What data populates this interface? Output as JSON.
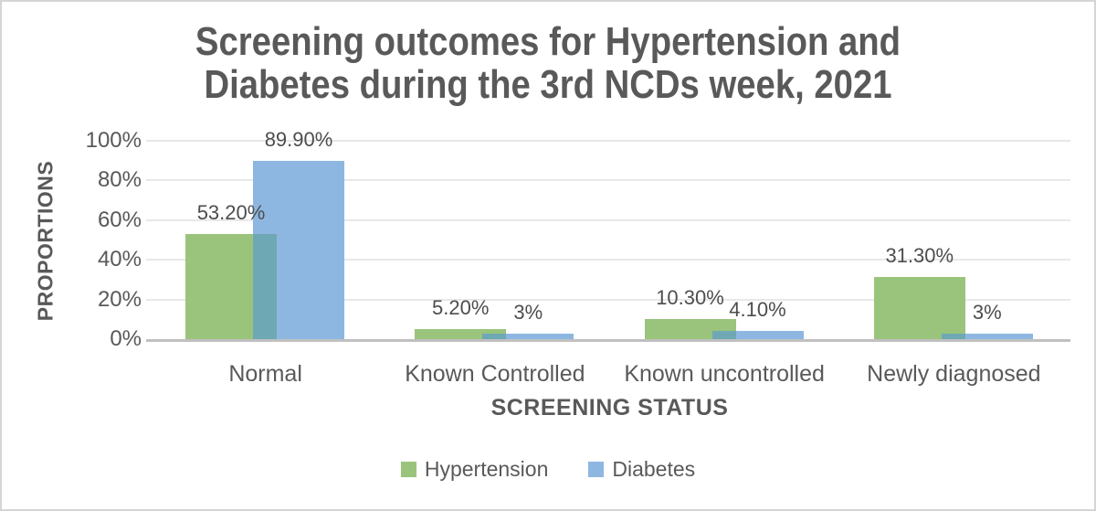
{
  "title": {
    "line1": "Screening outcomes for Hypertension and",
    "line2": "Diabetes during the 3rd NCDs week, 2021"
  },
  "chart_data": {
    "type": "bar",
    "title": "Screening outcomes for Hypertension and Diabetes during the 3rd NCDs week, 2021",
    "xlabel": "SCREENING STATUS",
    "ylabel": "PROPORTIONS",
    "categories": [
      "Normal",
      "Known Controlled",
      "Known uncontrolled",
      "Newly diagnosed"
    ],
    "series": [
      {
        "name": "Hypertension",
        "color": "#9ac47c",
        "values": [
          53.2,
          5.2,
          10.3,
          31.3
        ],
        "labels": [
          "53.20%",
          "5.20%",
          "10.30%",
          "31.30%"
        ]
      },
      {
        "name": "Diabetes",
        "color": "#8db7e0",
        "values": [
          89.9,
          3,
          4.1,
          3
        ],
        "labels": [
          "89.90%",
          "3%",
          "4.10%",
          "3%"
        ]
      }
    ],
    "overlap_color": "#6fa8b5",
    "ylim": [
      0,
      100
    ],
    "ytick_step": 20,
    "yticks": [
      "0%",
      "20%",
      "40%",
      "60%",
      "80%",
      "100%"
    ],
    "grid": true,
    "legend_position": "bottom",
    "colors": {
      "text": "#595959",
      "gridline": "#e8e8e8",
      "axis_line": "#c0c0c0",
      "border": "#d5d5d5"
    }
  }
}
